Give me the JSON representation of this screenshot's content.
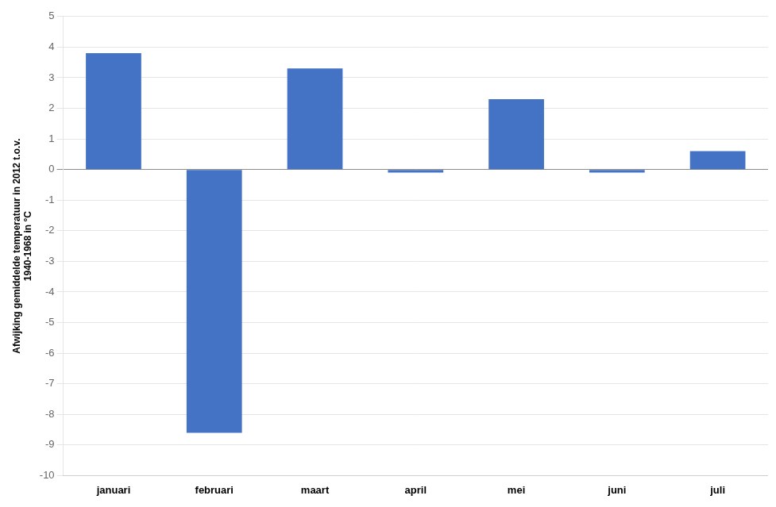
{
  "chart_data": {
    "type": "bar",
    "ylabel": "Afwijking gemiddelde temperatuur in 2012 t.o.v.\n1940-1968 in °C",
    "categories": [
      "januari",
      "februari",
      "maart",
      "april",
      "mei",
      "juni",
      "juli"
    ],
    "values": [
      3.8,
      -8.6,
      3.3,
      -0.1,
      2.3,
      -0.1,
      0.6
    ],
    "color": "#4472C4",
    "ylim": [
      -10,
      5
    ],
    "yticks": [
      -10,
      -9,
      -8,
      -7,
      -6,
      -5,
      -4,
      -3,
      -2,
      -1,
      0,
      1,
      2,
      3,
      4,
      5
    ],
    "grid": true
  }
}
